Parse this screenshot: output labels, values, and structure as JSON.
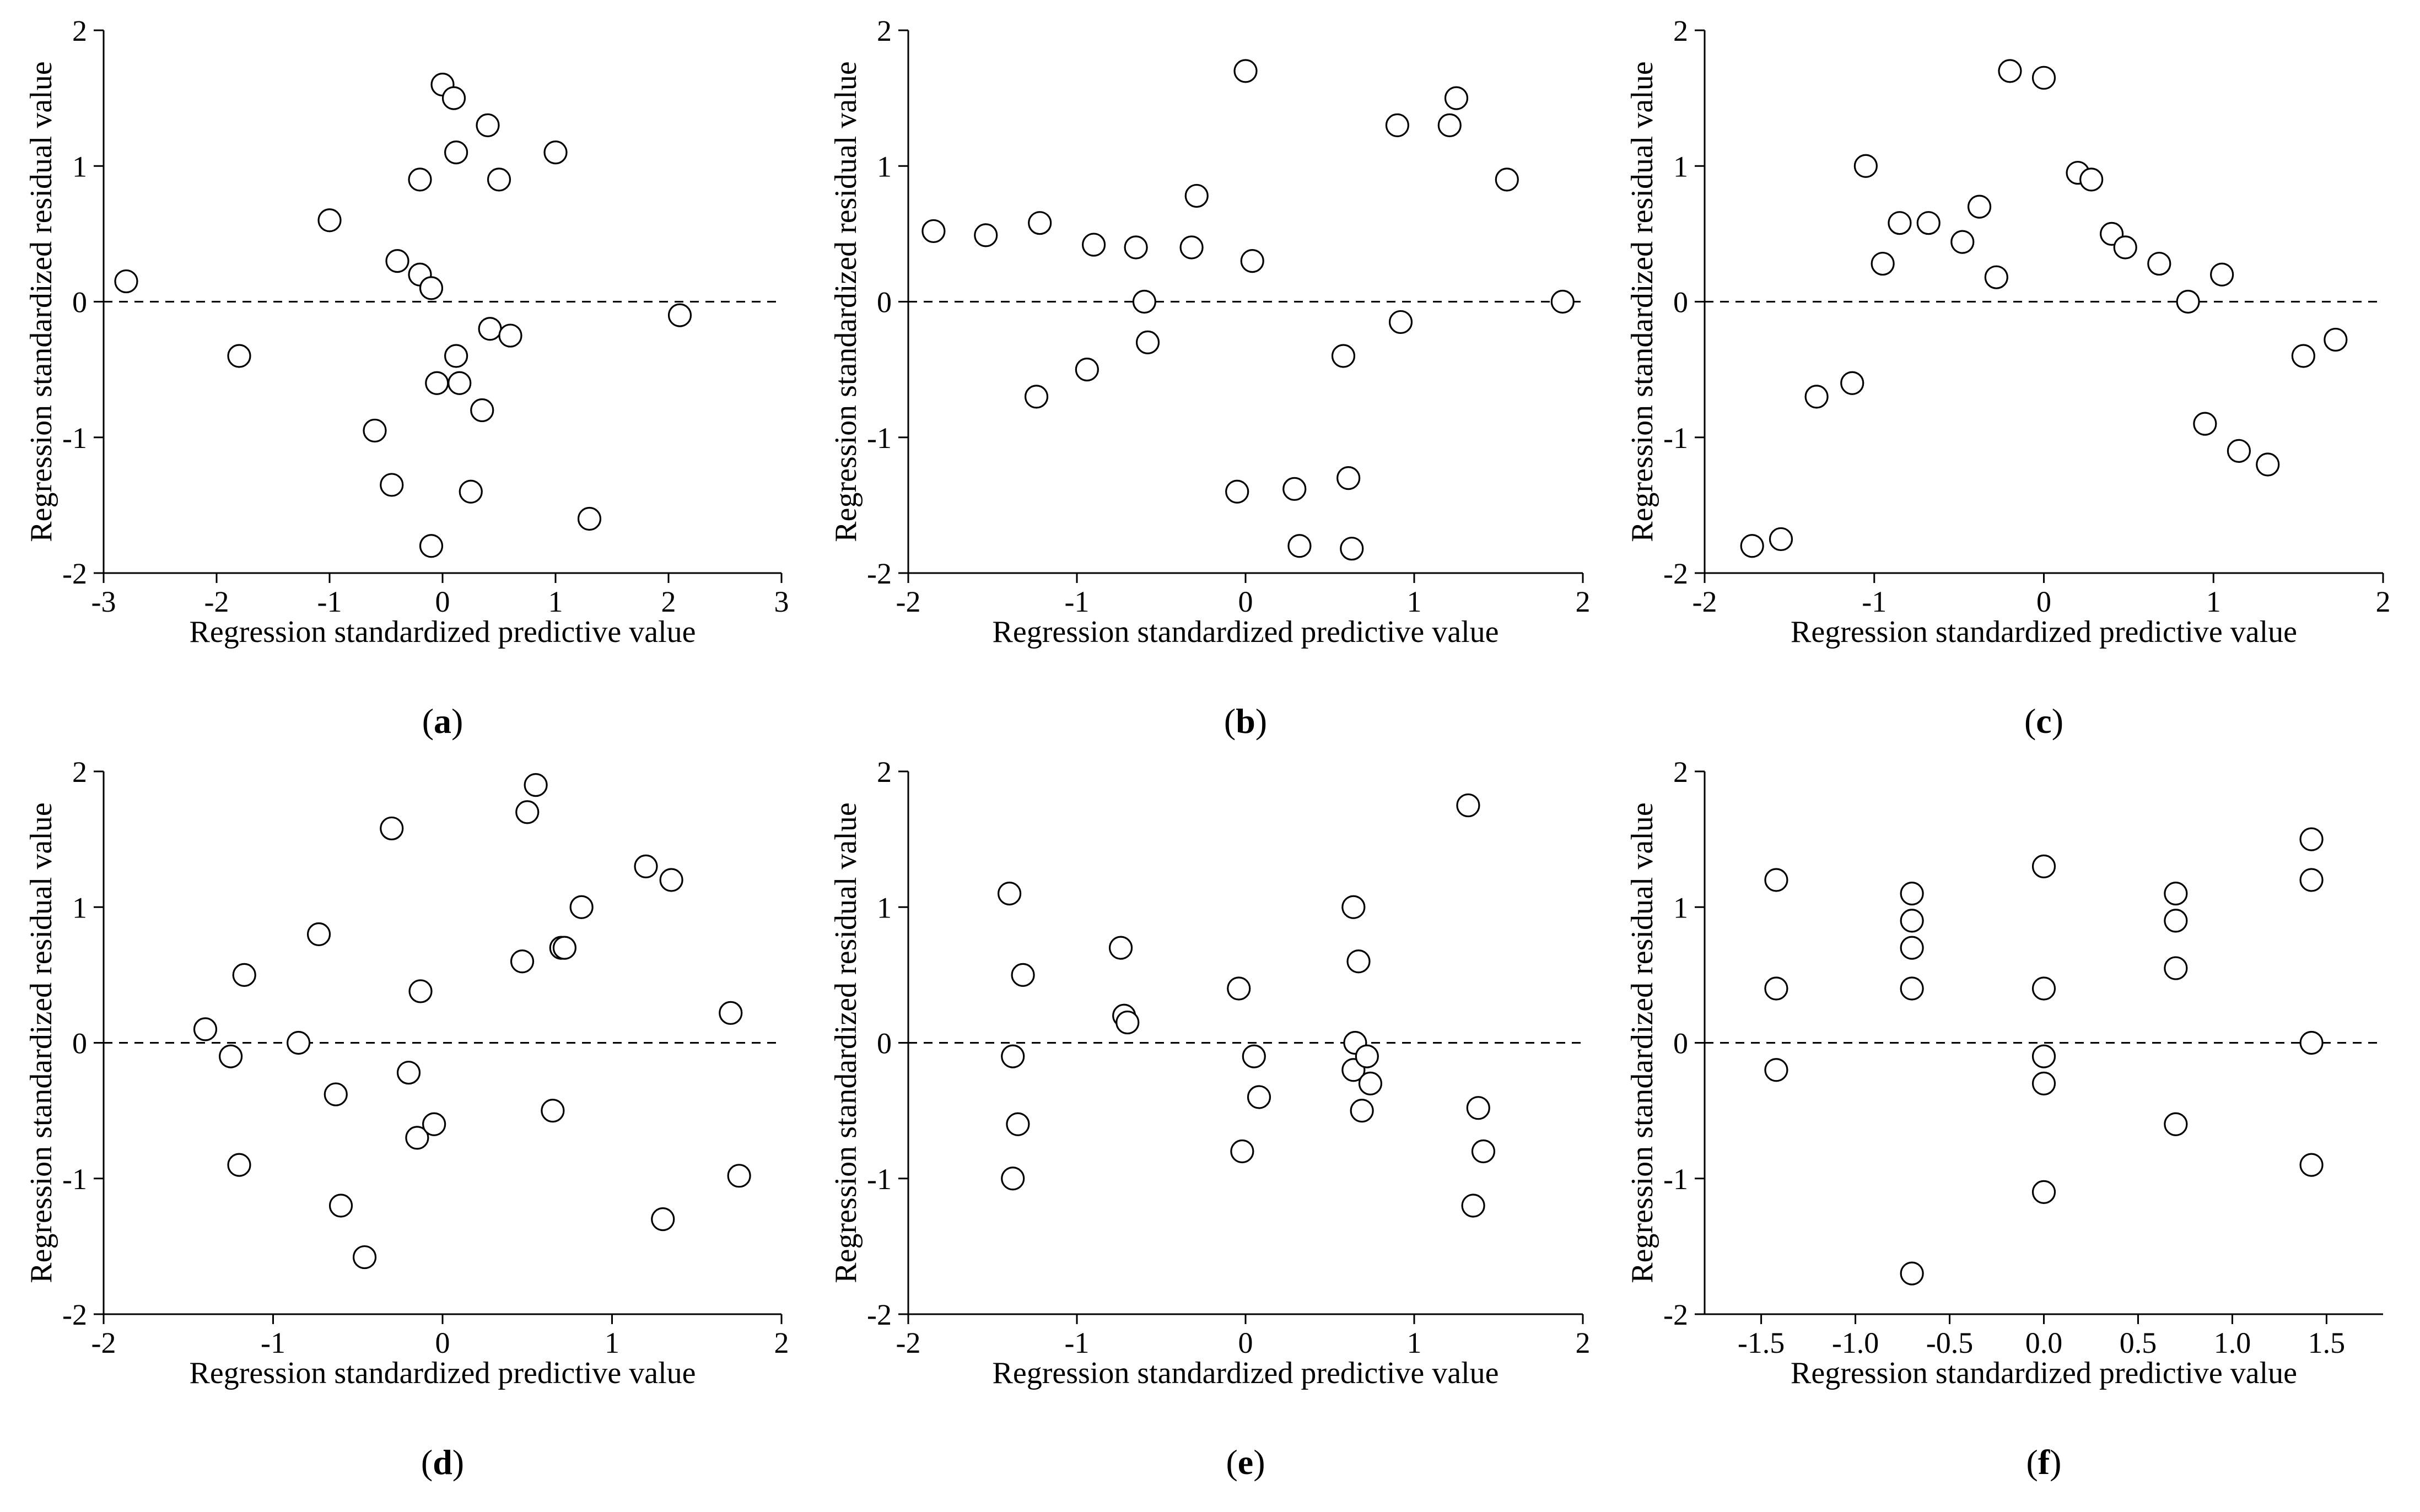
{
  "chart_data": [
    {
      "type": "scatter",
      "panel_label": "a",
      "xlabel": "Regression standardized predictive value",
      "ylabel": "Regression standardized residual value",
      "xlim": [
        -3,
        3
      ],
      "ylim": [
        -2,
        2
      ],
      "x_ticks": [
        -3,
        -2,
        -1,
        0,
        1,
        2,
        3
      ],
      "x_tick_labels": [
        "-3",
        "-2",
        "-1",
        "0",
        "1",
        "2",
        "3"
      ],
      "y_ticks": [
        -2,
        -1,
        0,
        1,
        2
      ],
      "y_tick_labels": [
        "-2",
        "-1",
        "0",
        "1",
        "2"
      ],
      "reference_line_y": 0,
      "points": [
        [
          -2.8,
          0.15
        ],
        [
          -1.8,
          -0.4
        ],
        [
          -1.0,
          0.6
        ],
        [
          -0.6,
          -0.95
        ],
        [
          -0.45,
          -1.35
        ],
        [
          -0.4,
          0.3
        ],
        [
          -0.2,
          0.2
        ],
        [
          -0.2,
          0.9
        ],
        [
          -0.1,
          0.1
        ],
        [
          -0.1,
          -1.8
        ],
        [
          -0.05,
          -0.6
        ],
        [
          0.0,
          1.6
        ],
        [
          0.1,
          1.5
        ],
        [
          0.12,
          1.1
        ],
        [
          0.12,
          -0.4
        ],
        [
          0.15,
          -0.6
        ],
        [
          0.25,
          -1.4
        ],
        [
          0.35,
          -0.8
        ],
        [
          0.4,
          1.3
        ],
        [
          0.42,
          -0.2
        ],
        [
          0.5,
          0.9
        ],
        [
          0.6,
          -0.25
        ],
        [
          1.0,
          1.1
        ],
        [
          1.3,
          -1.6
        ],
        [
          2.1,
          -0.1
        ]
      ]
    },
    {
      "type": "scatter",
      "panel_label": "b",
      "xlabel": "Regression standardized predictive value",
      "ylabel": "Regression standardized residual value",
      "xlim": [
        -2,
        2
      ],
      "ylim": [
        -2,
        2
      ],
      "x_ticks": [
        -2,
        -1,
        0,
        1,
        2
      ],
      "x_tick_labels": [
        "-2",
        "-1",
        "0",
        "1",
        "2"
      ],
      "y_ticks": [
        -2,
        -1,
        0,
        1,
        2
      ],
      "y_tick_labels": [
        "-2",
        "-1",
        "0",
        "1",
        "2"
      ],
      "reference_line_y": 0,
      "points": [
        [
          -1.85,
          0.52
        ],
        [
          -1.54,
          0.49
        ],
        [
          -1.22,
          0.58
        ],
        [
          -1.24,
          -0.7
        ],
        [
          -0.94,
          -0.5
        ],
        [
          -0.9,
          0.42
        ],
        [
          -0.65,
          0.4
        ],
        [
          -0.6,
          0.0
        ],
        [
          -0.58,
          -0.3
        ],
        [
          -0.32,
          0.4
        ],
        [
          -0.29,
          0.78
        ],
        [
          -0.05,
          -1.4
        ],
        [
          0.0,
          1.7
        ],
        [
          0.04,
          0.3
        ],
        [
          0.29,
          -1.38
        ],
        [
          0.32,
          -1.8
        ],
        [
          0.58,
          -0.4
        ],
        [
          0.61,
          -1.3
        ],
        [
          0.63,
          -1.82
        ],
        [
          0.9,
          1.3
        ],
        [
          0.92,
          -0.15
        ],
        [
          1.21,
          1.3
        ],
        [
          1.25,
          1.5
        ],
        [
          1.55,
          0.9
        ],
        [
          1.88,
          0.0
        ]
      ]
    },
    {
      "type": "scatter",
      "panel_label": "c",
      "xlabel": "Regression standardized predictive value",
      "ylabel": "Regression standardized residual value",
      "xlim": [
        -2,
        2
      ],
      "ylim": [
        -2,
        2
      ],
      "x_ticks": [
        -2,
        -1,
        0,
        1,
        2
      ],
      "x_tick_labels": [
        "-2",
        "-1",
        "0",
        "1",
        "2"
      ],
      "y_ticks": [
        -2,
        -1,
        0,
        1,
        2
      ],
      "y_tick_labels": [
        "-2",
        "-1",
        "0",
        "1",
        "2"
      ],
      "reference_line_y": 0,
      "points": [
        [
          -1.72,
          -1.8
        ],
        [
          -1.55,
          -1.75
        ],
        [
          -1.34,
          -0.7
        ],
        [
          -1.13,
          -0.6
        ],
        [
          -1.05,
          1.0
        ],
        [
          -0.95,
          0.28
        ],
        [
          -0.85,
          0.58
        ],
        [
          -0.68,
          0.58
        ],
        [
          -0.48,
          0.44
        ],
        [
          -0.38,
          0.7
        ],
        [
          -0.28,
          0.18
        ],
        [
          -0.2,
          1.7
        ],
        [
          0.0,
          1.65
        ],
        [
          0.2,
          0.95
        ],
        [
          0.28,
          0.9
        ],
        [
          0.4,
          0.5
        ],
        [
          0.48,
          0.4
        ],
        [
          0.68,
          0.28
        ],
        [
          0.85,
          0.0
        ],
        [
          0.95,
          -0.9
        ],
        [
          1.05,
          0.2
        ],
        [
          1.15,
          -1.1
        ],
        [
          1.32,
          -1.2
        ],
        [
          1.53,
          -0.4
        ],
        [
          1.72,
          -0.28
        ]
      ]
    },
    {
      "type": "scatter",
      "panel_label": "d",
      "xlabel": "Regression standardized predictive value",
      "ylabel": "Regression standardized residual value",
      "xlim": [
        -2,
        2
      ],
      "ylim": [
        -2,
        2
      ],
      "x_ticks": [
        -2,
        -1,
        0,
        1,
        2
      ],
      "x_tick_labels": [
        "-2",
        "-1",
        "0",
        "1",
        "2"
      ],
      "y_ticks": [
        -2,
        -1,
        0,
        1,
        2
      ],
      "y_tick_labels": [
        "-2",
        "-1",
        "0",
        "1",
        "2"
      ],
      "reference_line_y": 0,
      "points": [
        [
          -1.4,
          0.1
        ],
        [
          -1.25,
          -0.1
        ],
        [
          -1.2,
          -0.9
        ],
        [
          -1.17,
          0.5
        ],
        [
          -0.85,
          0.0
        ],
        [
          -0.73,
          0.8
        ],
        [
          -0.63,
          -0.38
        ],
        [
          -0.6,
          -1.2
        ],
        [
          -0.46,
          -1.58
        ],
        [
          -0.3,
          1.58
        ],
        [
          -0.2,
          -0.22
        ],
        [
          -0.15,
          -0.7
        ],
        [
          -0.13,
          0.38
        ],
        [
          -0.05,
          -0.6
        ],
        [
          0.47,
          0.6
        ],
        [
          0.5,
          1.7
        ],
        [
          0.55,
          1.9
        ],
        [
          0.65,
          -0.5
        ],
        [
          0.7,
          0.7
        ],
        [
          0.72,
          0.7
        ],
        [
          0.82,
          1.0
        ],
        [
          1.2,
          1.3
        ],
        [
          1.3,
          -1.3
        ],
        [
          1.35,
          1.2
        ],
        [
          1.7,
          0.22
        ],
        [
          1.75,
          -0.98
        ]
      ]
    },
    {
      "type": "scatter",
      "panel_label": "e",
      "xlabel": "Regression standardized predictive value",
      "ylabel": "Regression standardized residual value",
      "xlim": [
        -2,
        2
      ],
      "ylim": [
        -2,
        2
      ],
      "x_ticks": [
        -2,
        -1,
        0,
        1,
        2
      ],
      "x_tick_labels": [
        "-2",
        "-1",
        "0",
        "1",
        "2"
      ],
      "y_ticks": [
        -2,
        -1,
        0,
        1,
        2
      ],
      "y_tick_labels": [
        "-2",
        "-1",
        "0",
        "1",
        "2"
      ],
      "reference_line_y": 0,
      "points": [
        [
          -1.4,
          1.1
        ],
        [
          -1.38,
          -0.1
        ],
        [
          -1.38,
          -1.0
        ],
        [
          -1.35,
          -0.6
        ],
        [
          -1.32,
          0.5
        ],
        [
          -0.74,
          0.7
        ],
        [
          -0.72,
          0.2
        ],
        [
          -0.7,
          0.15
        ],
        [
          -0.04,
          0.4
        ],
        [
          -0.02,
          -0.8
        ],
        [
          0.05,
          -0.1
        ],
        [
          0.08,
          -0.4
        ],
        [
          0.64,
          1.0
        ],
        [
          0.64,
          -0.2
        ],
        [
          0.65,
          0.0
        ],
        [
          0.67,
          0.6
        ],
        [
          0.69,
          -0.5
        ],
        [
          0.72,
          -0.1
        ],
        [
          0.74,
          -0.3
        ],
        [
          1.32,
          1.75
        ],
        [
          1.35,
          -1.2
        ],
        [
          1.38,
          -0.48
        ],
        [
          1.41,
          -0.8
        ]
      ]
    },
    {
      "type": "scatter",
      "panel_label": "f",
      "xlabel": "Regression standardized predictive value",
      "ylabel": "Regression standardized residual value",
      "xlim": [
        -1.8,
        1.8
      ],
      "ylim": [
        -2,
        2
      ],
      "x_ticks": [
        -1.5,
        -1.0,
        -0.5,
        0.0,
        0.5,
        1.0,
        1.5
      ],
      "x_tick_labels": [
        "-1.5",
        "-1.0",
        "-0.5",
        "0.0",
        "0.5",
        "1.0",
        "1.5"
      ],
      "y_ticks": [
        -2,
        -1,
        0,
        1,
        2
      ],
      "y_tick_labels": [
        "-2",
        "-1",
        "0",
        "1",
        "2"
      ],
      "reference_line_y": 0,
      "points": [
        [
          -1.42,
          1.2
        ],
        [
          -1.42,
          0.4
        ],
        [
          -1.42,
          -0.2
        ],
        [
          -0.7,
          1.1
        ],
        [
          -0.7,
          0.9
        ],
        [
          -0.7,
          0.7
        ],
        [
          -0.7,
          0.4
        ],
        [
          -0.7,
          -1.7
        ],
        [
          0.0,
          1.3
        ],
        [
          0.0,
          0.4
        ],
        [
          0.0,
          -0.1
        ],
        [
          0.0,
          -0.3
        ],
        [
          0.0,
          -1.1
        ],
        [
          0.7,
          1.1
        ],
        [
          0.7,
          0.9
        ],
        [
          0.7,
          0.55
        ],
        [
          0.7,
          -0.6
        ],
        [
          1.42,
          1.5
        ],
        [
          1.42,
          1.2
        ],
        [
          1.42,
          0.0
        ],
        [
          1.42,
          -0.9
        ]
      ]
    }
  ]
}
